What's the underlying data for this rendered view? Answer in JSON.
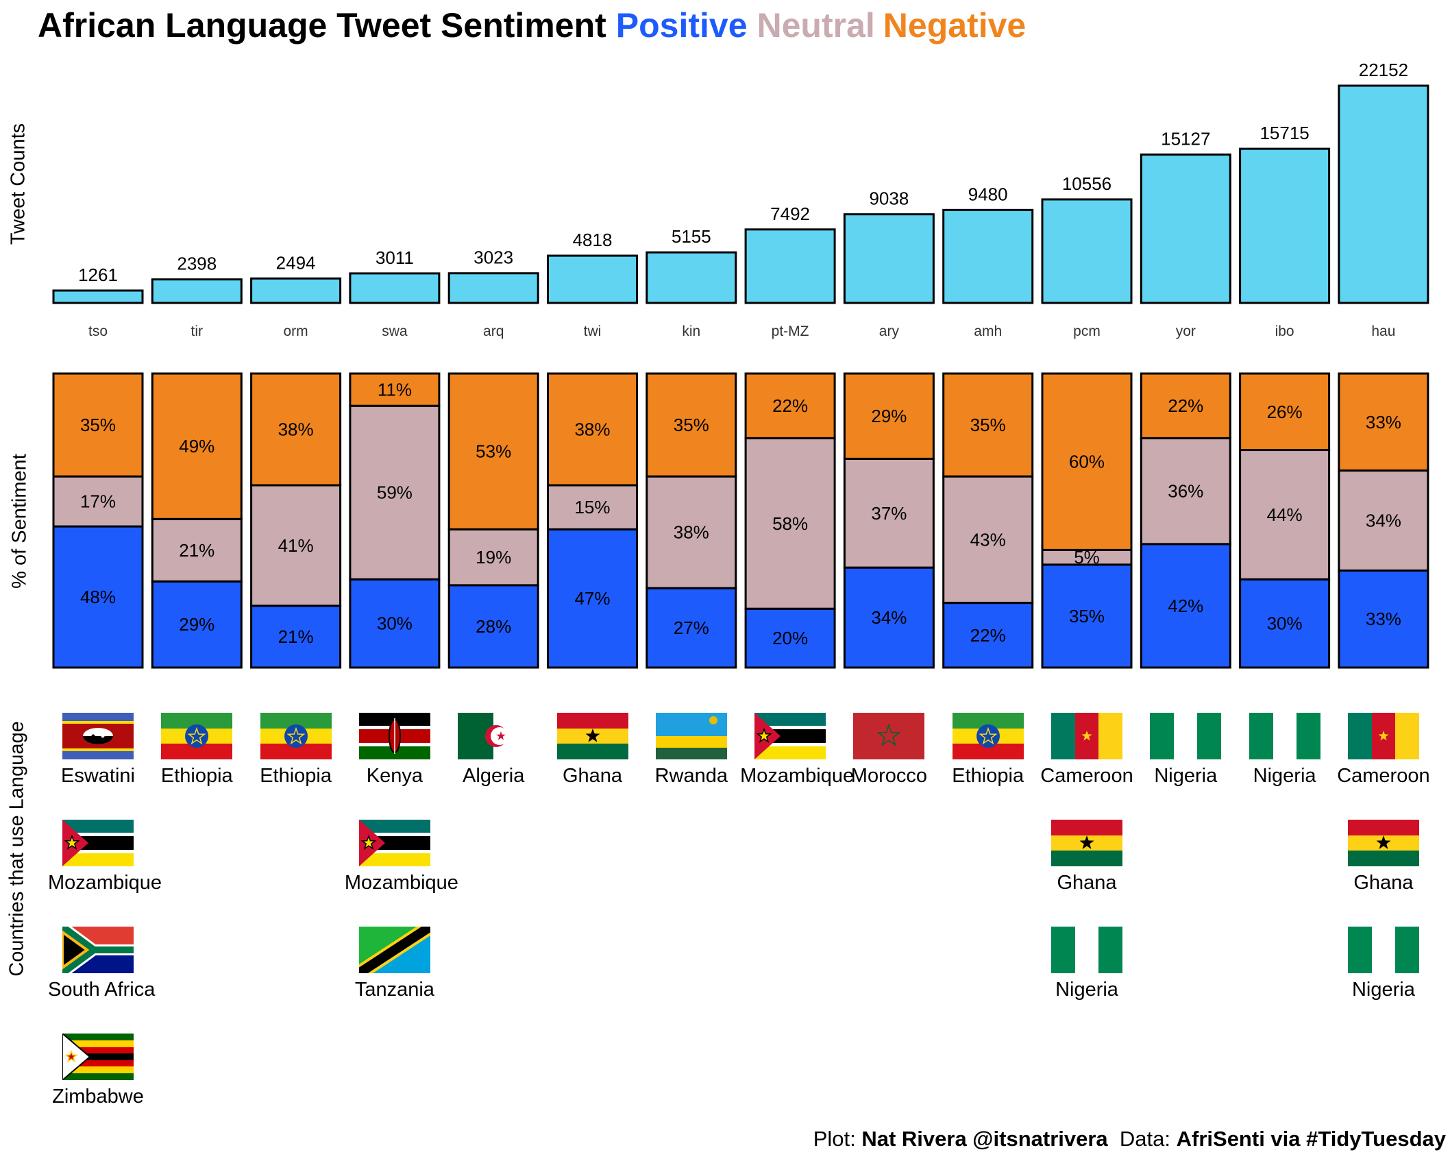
{
  "title": {
    "main": "African Language Tweet Sentiment",
    "positive": "Positive",
    "neutral": "Neutral",
    "negative": "Negative"
  },
  "colors": {
    "count_bar": "#61d4f2",
    "positive": "#1e5bfc",
    "neutral": "#c9abb0",
    "negative": "#f0841e"
  },
  "caption": {
    "plot_prefix": "Plot: ",
    "author": "Nat Rivera @itsnatrivera",
    "data_prefix": "  Data: ",
    "source": "AfriSenti via #TidyTuesday"
  },
  "axis_labels": {
    "counts": "Tweet Counts",
    "sentiment": "% of Sentiment",
    "countries": "Countries that use Language"
  },
  "chart_data": [
    {
      "type": "bar",
      "ylabel": "Tweet Counts",
      "categories": [
        "tso",
        "tir",
        "orm",
        "swa",
        "arq",
        "twi",
        "kin",
        "pt-MZ",
        "ary",
        "amh",
        "pcm",
        "yor",
        "ibo",
        "hau"
      ],
      "values": [
        1261,
        2398,
        2494,
        3011,
        3023,
        4818,
        5155,
        7492,
        9038,
        9480,
        10556,
        15127,
        15715,
        22152
      ],
      "ylim": [
        0,
        22152
      ]
    },
    {
      "type": "bar",
      "stacked": true,
      "ylabel": "% of Sentiment",
      "categories": [
        "tso",
        "tir",
        "orm",
        "swa",
        "arq",
        "twi",
        "kin",
        "pt-MZ",
        "ary",
        "amh",
        "pcm",
        "yor",
        "ibo",
        "hau"
      ],
      "series": [
        {
          "name": "Positive",
          "values": [
            48,
            29,
            21,
            30,
            28,
            47,
            27,
            20,
            34,
            22,
            35,
            42,
            30,
            33
          ]
        },
        {
          "name": "Neutral",
          "values": [
            17,
            21,
            41,
            59,
            19,
            15,
            38,
            58,
            37,
            43,
            5,
            36,
            44,
            34
          ]
        },
        {
          "name": "Negative",
          "values": [
            35,
            49,
            38,
            11,
            53,
            38,
            35,
            22,
            29,
            35,
            60,
            22,
            26,
            33
          ]
        }
      ],
      "ylim": [
        0,
        100
      ]
    }
  ],
  "countries": [
    [
      "Eswatini",
      "Mozambique",
      "South Africa",
      "Zimbabwe"
    ],
    [
      "Ethiopia"
    ],
    [
      "Ethiopia"
    ],
    [
      "Kenya",
      "Mozambique",
      "Tanzania"
    ],
    [
      "Algeria"
    ],
    [
      "Ghana"
    ],
    [
      "Rwanda"
    ],
    [
      "Mozambique"
    ],
    [
      "Morocco"
    ],
    [
      "Ethiopia"
    ],
    [
      "Cameroon",
      "Ghana",
      "Nigeria"
    ],
    [
      "Nigeria"
    ],
    [
      "Nigeria"
    ],
    [
      "Cameroon",
      "Ghana",
      "Nigeria"
    ]
  ]
}
